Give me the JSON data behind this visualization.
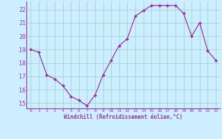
{
  "x": [
    0,
    1,
    2,
    3,
    4,
    5,
    6,
    7,
    8,
    9,
    10,
    11,
    12,
    13,
    14,
    15,
    16,
    17,
    18,
    19,
    20,
    21,
    22,
    23
  ],
  "y": [
    19.0,
    18.8,
    17.1,
    16.8,
    16.3,
    15.5,
    15.2,
    14.8,
    15.6,
    17.1,
    18.2,
    19.3,
    19.8,
    21.5,
    21.9,
    22.3,
    22.3,
    22.3,
    22.3,
    21.7,
    20.0,
    21.0,
    18.9,
    18.2
  ],
  "ylim": [
    14.6,
    22.6
  ],
  "xlim": [
    -0.5,
    23.5
  ],
  "yticks": [
    15,
    16,
    17,
    18,
    19,
    20,
    21,
    22
  ],
  "xticks": [
    0,
    1,
    2,
    3,
    4,
    5,
    6,
    7,
    8,
    9,
    10,
    11,
    12,
    13,
    14,
    15,
    16,
    17,
    18,
    19,
    20,
    21,
    22,
    23
  ],
  "line_color": "#993399",
  "marker_color": "#993399",
  "bg_color": "#cceeff",
  "xlabel": "Windchill (Refroidissement éolien,°C)",
  "xlabel_color": "#993399",
  "tick_label_color": "#993399",
  "spine_color": "#993399",
  "grid_color": "#aad4d4"
}
